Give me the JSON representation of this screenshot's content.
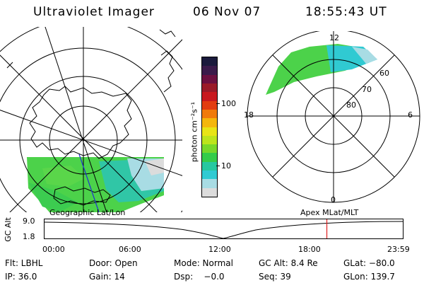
{
  "header": {
    "title": "Ultraviolet Imager",
    "date": "06 Nov 07",
    "time": "18:55:43 UT"
  },
  "colorbar": {
    "label": "photon cm⁻²s⁻¹",
    "ticks": [
      "100",
      "10"
    ],
    "colors": [
      "#1a1a3c",
      "#3a1a4a",
      "#6b1040",
      "#9a1a28",
      "#c8181e",
      "#e23c10",
      "#f07a0a",
      "#f4b60c",
      "#e8e416",
      "#bce41c",
      "#78d82a",
      "#34cc4a",
      "#26c8a0",
      "#30cad2",
      "#a8dce4",
      "#dcdcdc"
    ]
  },
  "left_map": {
    "caption": "Geographic Lat/Lon",
    "grid_color": "#000000",
    "meridian_color": "#2030d0"
  },
  "right_map": {
    "caption": "Apex MLat/MLT",
    "labels": {
      "top": "12",
      "right": "6",
      "left": "18",
      "bottom": "0",
      "lat60": "60",
      "lat70": "70",
      "lat80": "80"
    }
  },
  "timeline": {
    "y_axis_label": "GC Alt",
    "y_max": "9.0",
    "y_min": "1.8",
    "x_ticks": [
      "00:00",
      "06:00",
      "12:00",
      "18:00",
      "23:59"
    ],
    "current_time_fraction": 0.788,
    "marker_color": "#e02020"
  },
  "status": {
    "flt": "Flt: LBHL",
    "door": "Door: Open",
    "mode": "Mode: Normal",
    "gc_alt": "GC Alt: 8.4 Re",
    "glat": "GLat: −80.0",
    "ip": "IP: 36.0",
    "gain": "Gain: 14",
    "dsp": "Dsp:    −0.0",
    "seq": "Seq: 39",
    "glon": "GLon: 139.7"
  }
}
